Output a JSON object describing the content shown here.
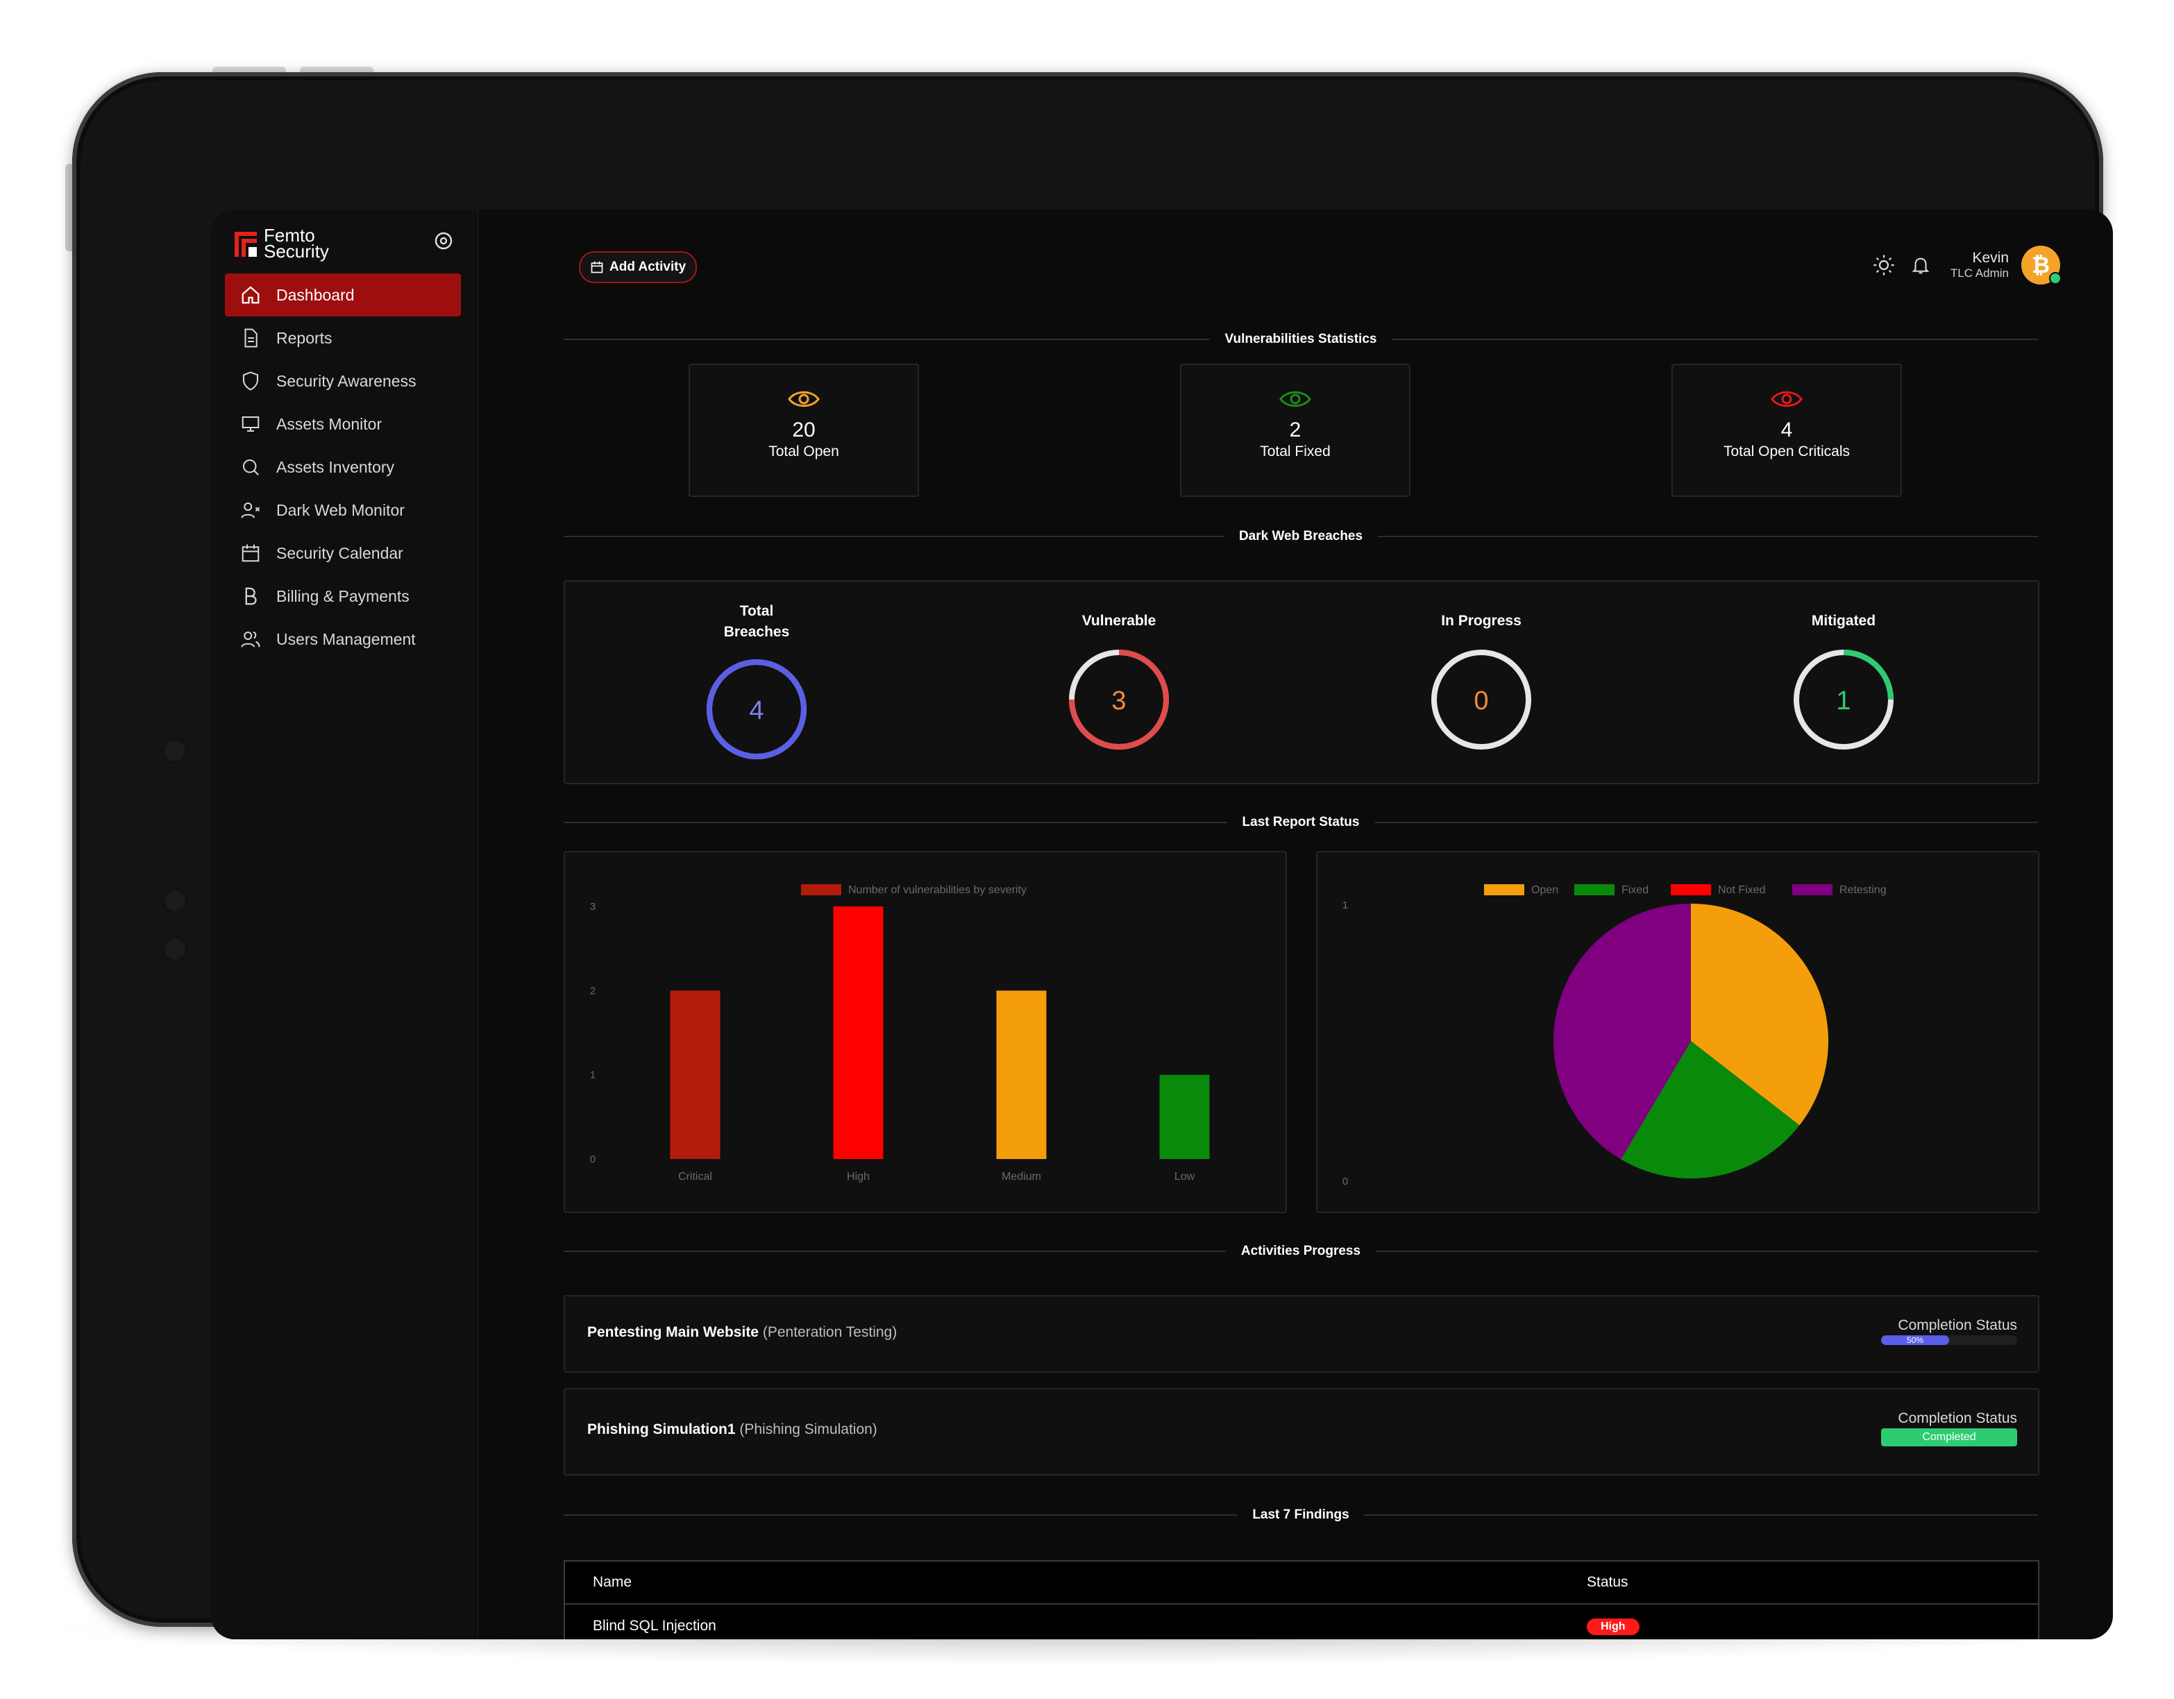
{
  "sidebar": {
    "logo": {
      "line1": "Femto",
      "line2": "Security"
    },
    "items": [
      {
        "label": "Dashboard"
      },
      {
        "label": "Reports"
      },
      {
        "label": "Security Awareness"
      },
      {
        "label": "Assets Monitor"
      },
      {
        "label": "Assets Inventory"
      },
      {
        "label": "Dark Web Monitor"
      },
      {
        "label": "Security Calendar"
      },
      {
        "label": "Billing & Payments"
      },
      {
        "label": "Users Management"
      }
    ]
  },
  "header": {
    "add_activity": "Add Activity",
    "user": {
      "name": "Kevin",
      "role": "TLC Admin"
    }
  },
  "vuln_stats": {
    "title": "Vulnerabilities Statistics",
    "cards": [
      {
        "value": "20",
        "label": "Total Open",
        "color": "#f4a32a"
      },
      {
        "value": "2",
        "label": "Total Fixed",
        "color": "#1a8c1a"
      },
      {
        "value": "4",
        "label": "Total Open Criticals",
        "color": "#e01b1b"
      }
    ]
  },
  "dark_web": {
    "title": "Dark Web Breaches",
    "gauges": [
      {
        "label": "Total Breaches",
        "value": "4",
        "fraction": 1.0,
        "color": "#5a5fe8",
        "text_color": "#7c80ea"
      },
      {
        "label": "Vulnerable",
        "value": "3",
        "fraction": 0.75,
        "color": "#e14b4b",
        "text_color": "#f08a3a"
      },
      {
        "label": "In Progress",
        "value": "0",
        "fraction": 0.0,
        "color": "#f08a3a",
        "text_color": "#f08a3a"
      },
      {
        "label": "Mitigated",
        "value": "1",
        "fraction": 0.25,
        "color": "#2ecc71",
        "text_color": "#2ecc71"
      }
    ]
  },
  "last_report": {
    "title": "Last Report Status"
  },
  "chart_data": [
    {
      "type": "bar",
      "legend": "Number of vulnerabilities by severity",
      "categories": [
        "Critical",
        "High",
        "Medium",
        "Low"
      ],
      "values": [
        2,
        3,
        2,
        1
      ],
      "colors": [
        "#b31b0c",
        "#ff0000",
        "#f59e0b",
        "#0a8a0a"
      ],
      "y_ticks": [
        "0",
        "1",
        "2",
        "3"
      ],
      "ylim": [
        0,
        3
      ]
    },
    {
      "type": "pie",
      "legend": [
        "Open",
        "Fixed",
        "Not Fixed",
        "Retesting"
      ],
      "legend_colors": [
        "#f59e0b",
        "#0a8a0a",
        "#ff0000",
        "#800080"
      ],
      "slices": [
        {
          "name": "Open",
          "value": 0.355,
          "color": "#f59e0b"
        },
        {
          "name": "Fixed",
          "value": 0.23,
          "color": "#0a8a0a"
        },
        {
          "name": "Not Fixed",
          "value": 0.0,
          "color": "#ff0000"
        },
        {
          "name": "Retesting",
          "value": 0.415,
          "color": "#800080"
        }
      ],
      "y_ticks": [
        "0",
        "1"
      ]
    }
  ],
  "activities": {
    "title": "Activities Progress",
    "items": [
      {
        "name": "Pentesting Main Website",
        "type": "(Penteration Testing)",
        "status_label": "Completion Status",
        "progress": "50%"
      },
      {
        "name": "Phishing Simulation1",
        "type": "(Phishing Simulation)",
        "status_label": "Completion Status",
        "badge": "Completed"
      }
    ]
  },
  "findings": {
    "title": "Last 7 Findings",
    "columns": [
      "Name",
      "Status"
    ],
    "rows": [
      {
        "name": "Blind SQL Injection",
        "status": "High"
      }
    ]
  }
}
